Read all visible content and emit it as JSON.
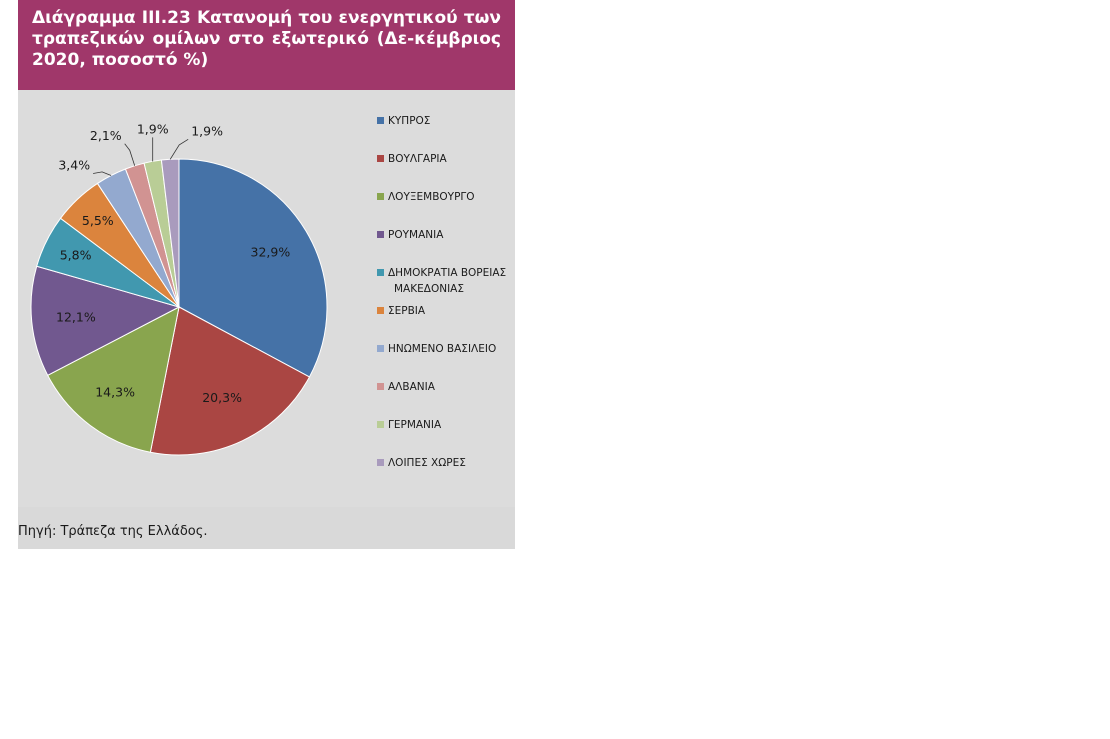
{
  "header": {
    "title": "Διάγραμμα III.23 Κατανομή του ενεργητικού των τραπεζικών ομίλων στο εξωτερικό (Δε-κέμβριος 2020, ποσοστό %)"
  },
  "footer": {
    "source": "Πηγή: Τράπεζα της Ελλάδος."
  },
  "chart_data": {
    "type": "pie",
    "title": "Διάγραμμα III.23 Κατανομή του ενεργητικού των τραπεζικών ομίλων στο εξωτερικό (Δε-κέμβριος 2020, ποσοστό %)",
    "legend_position": "right",
    "unit": "%",
    "slices": [
      {
        "label": "ΚΥΠΡΟΣ",
        "legend_lines": [
          "ΚΥΠΡΟΣ"
        ],
        "value": 32.9,
        "data_label": "32,9%",
        "color": "#4572a7"
      },
      {
        "label": "ΒΟΥΛΓΑΡΙΑ",
        "legend_lines": [
          "ΒΟΥΛΓΑΡΙΑ"
        ],
        "value": 20.3,
        "data_label": "20,3%",
        "color": "#aa4643"
      },
      {
        "label": "ΛΟΥΞΕΜΒΟΥΡΓΟ",
        "legend_lines": [
          "ΛΟΥΞΕΜΒΟΥΡΓΟ"
        ],
        "value": 14.3,
        "data_label": "14,3%",
        "color": "#89a54e"
      },
      {
        "label": "ΡΟΥΜΑΝΙΑ",
        "legend_lines": [
          "ΡΟΥΜΑΝΙΑ"
        ],
        "value": 12.1,
        "data_label": "12,1%",
        "color": "#71588f"
      },
      {
        "label": "ΔΗΜΟΚΡΑΤΙΑ ΒΟΡΕΙΑΣ ΜΑΚΕΔΟΝΙΑΣ",
        "legend_lines": [
          "ΔΗΜΟΚΡΑΤΙΑ ΒΟΡΕΙΑΣ",
          "ΜΑΚΕΔΟΝΙΑΣ"
        ],
        "value": 5.8,
        "data_label": "5,8%",
        "color": "#4198af"
      },
      {
        "label": "ΣΕΡΒΙΑ",
        "legend_lines": [
          "ΣΕΡΒΙΑ"
        ],
        "value": 5.5,
        "data_label": "5,5%",
        "color": "#db843d"
      },
      {
        "label": "ΗΝΩΜΕΝΟ ΒΑΣΙΛΕΙΟ",
        "legend_lines": [
          "ΗΝΩΜΕΝΟ ΒΑΣΙΛΕΙΟ"
        ],
        "value": 3.4,
        "data_label": "3,4%",
        "color": "#93a9cf"
      },
      {
        "label": "ΑΛΒΑΝΙΑ",
        "legend_lines": [
          "ΑΛΒΑΝΙΑ"
        ],
        "value": 2.1,
        "data_label": "2,1%",
        "color": "#d19392"
      },
      {
        "label": "ΓΕΡΜΑΝΙΑ",
        "legend_lines": [
          "ΓΕΡΜΑΝΙΑ"
        ],
        "value": 1.9,
        "data_label": "1,9%",
        "color": "#b9cd96"
      },
      {
        "label": "ΛΟΙΠΕΣ ΧΩΡΕΣ",
        "legend_lines": [
          "ΛΟΙΠΕΣ ΧΩΡΕΣ"
        ],
        "value": 1.9,
        "data_label": "1,9%",
        "color": "#a99bbd"
      }
    ]
  }
}
